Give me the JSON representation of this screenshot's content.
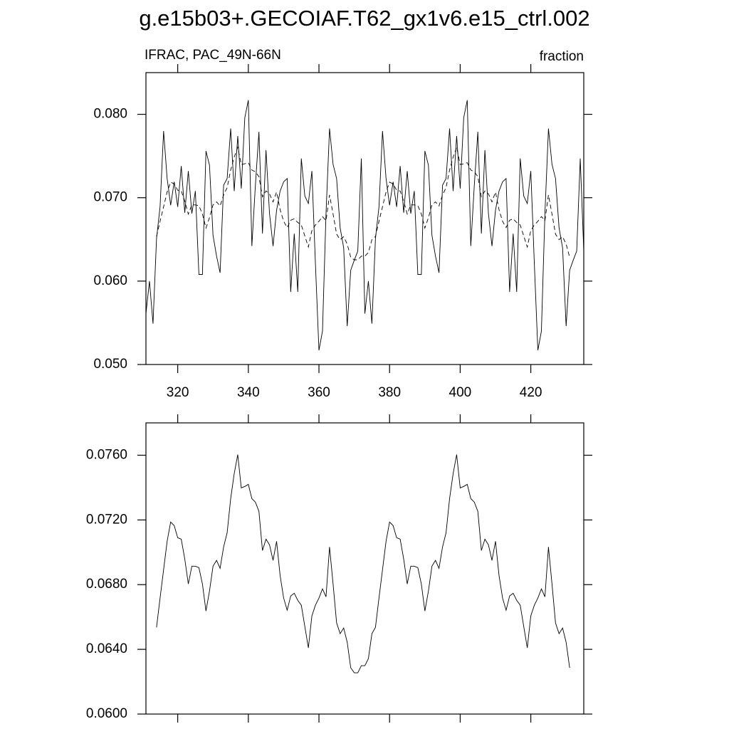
{
  "chart_data": [
    {
      "type": "line",
      "title": "g.e15b03+.GECOIAF.T62_gx1v6.e15_ctrl.002",
      "left_label": "IFRAC, PAC_49N-66N",
      "right_label": "fraction",
      "x": [
        311,
        312,
        313,
        314,
        315,
        316,
        317,
        318,
        319,
        320,
        321,
        322,
        323,
        324,
        325,
        326,
        327,
        328,
        329,
        330,
        331,
        332,
        333,
        334,
        335,
        336,
        337,
        338,
        339,
        340,
        341,
        342,
        343,
        344,
        345,
        346,
        347,
        348,
        349,
        350,
        351,
        352,
        353,
        354,
        355,
        356,
        357,
        358,
        359,
        360,
        361,
        362,
        363,
        364,
        365,
        366,
        367,
        368,
        369,
        370,
        371,
        372,
        373,
        374,
        375,
        376,
        377,
        378,
        379,
        380,
        381,
        382,
        383,
        384,
        385,
        386,
        387,
        388,
        389,
        390,
        391,
        392,
        393,
        394,
        395,
        396,
        397,
        398,
        399,
        400,
        401,
        402,
        403,
        404,
        405,
        406,
        407,
        408,
        409,
        410,
        411,
        412,
        413,
        414,
        415,
        416,
        417,
        418,
        419,
        420,
        421,
        422,
        423,
        424,
        425,
        426,
        427,
        428,
        429,
        430,
        431,
        432,
        433,
        434,
        435
      ],
      "series": [
        {
          "color": "#000000",
          "line_style": "solid",
          "values": [
            0.0561,
            0.06,
            0.0549,
            0.0651,
            0.0689,
            0.078,
            0.0723,
            0.0691,
            0.0719,
            0.0689,
            0.0738,
            0.0682,
            0.0732,
            0.0681,
            0.0708,
            0.0608,
            0.0608,
            0.0756,
            0.0739,
            0.0655,
            0.063,
            0.061,
            0.0715,
            0.0723,
            0.0783,
            0.0708,
            0.0774,
            0.0711,
            0.0796,
            0.0817,
            0.0642,
            0.0715,
            0.0779,
            0.0657,
            0.0757,
            0.0681,
            0.0642,
            0.0685,
            0.0708,
            0.0719,
            0.0723,
            0.0587,
            0.0657,
            0.0587,
            0.0747,
            0.0702,
            0.0693,
            0.0732,
            0.0621,
            0.0517,
            0.054,
            0.0681,
            0.0783,
            0.074,
            0.0723,
            0.0664,
            0.064,
            0.0546,
            0.0613,
            0.0625,
            0.0636,
            0.0747,
            0.0561,
            0.06,
            0.0549,
            0.0651,
            0.0689,
            0.078,
            0.0723,
            0.0691,
            0.0719,
            0.0689,
            0.0738,
            0.0682,
            0.0732,
            0.0681,
            0.0708,
            0.0608,
            0.0608,
            0.0756,
            0.0739,
            0.0655,
            0.063,
            0.061,
            0.0715,
            0.0723,
            0.0783,
            0.0708,
            0.0774,
            0.0711,
            0.0796,
            0.0817,
            0.0642,
            0.0715,
            0.0779,
            0.0657,
            0.0757,
            0.0681,
            0.0642,
            0.0685,
            0.0708,
            0.0719,
            0.0723,
            0.0587,
            0.0657,
            0.0587,
            0.0747,
            0.0702,
            0.0693,
            0.0732,
            0.0621,
            0.0517,
            0.054,
            0.0681,
            0.0783,
            0.074,
            0.0723,
            0.0664,
            0.064,
            0.0546,
            0.0613,
            0.0625,
            0.0636,
            0.0747,
            0.0636
          ]
        },
        {
          "color": "#000000",
          "line_style": "dashed",
          "values": [
            null,
            null,
            null,
            0.06536,
            0.06717,
            0.06892,
            0.07068,
            0.07187,
            0.07165,
            0.0709,
            0.07081,
            0.06958,
            0.06804,
            0.06914,
            0.06914,
            0.06905,
            0.06804,
            0.06637,
            0.0676,
            0.06914,
            0.0695,
            0.06901,
            0.07033,
            0.07121,
            0.07332,
            0.07486,
            0.07604,
            0.07398,
            0.07407,
            0.0742,
            0.07332,
            0.0731,
            0.07253,
            0.07011,
            0.07081,
            0.07046,
            0.0695,
            0.07068,
            0.06857,
            0.06717,
            0.06642,
            0.0673,
            0.06747,
            0.06703,
            0.06673,
            0.06541,
            0.06409,
            0.06607,
            0.06673,
            0.06717,
            0.06774,
            0.06725,
            0.07033,
            0.06804,
            0.06563,
            0.06497,
            0.06532,
            0.06444,
            0.06286,
            0.06255,
            0.06255,
            0.06299,
            0.06299,
            0.06343,
            0.06497,
            0.06536,
            0.06717,
            0.06892,
            0.07068,
            0.07187,
            0.07165,
            0.0709,
            0.07081,
            0.06958,
            0.06804,
            0.06914,
            0.06914,
            0.06905,
            0.06804,
            0.06637,
            0.0676,
            0.06914,
            0.0695,
            0.06901,
            0.07033,
            0.07121,
            0.07332,
            0.07486,
            0.07604,
            0.07398,
            0.07407,
            0.0742,
            0.07332,
            0.0731,
            0.07253,
            0.07011,
            0.07081,
            0.07046,
            0.0695,
            0.07068,
            0.06857,
            0.06717,
            0.06642,
            0.0673,
            0.06747,
            0.06703,
            0.06673,
            0.06541,
            0.06409,
            0.06607,
            0.06673,
            0.06717,
            0.06774,
            0.06725,
            0.07033,
            0.06804,
            0.06563,
            0.06497,
            0.06532,
            0.06444,
            0.06286,
            null,
            null,
            null,
            null
          ]
        }
      ],
      "xlim": [
        311,
        435
      ],
      "ylim": [
        0.05,
        0.085
      ],
      "xticks": [
        320,
        340,
        360,
        380,
        400,
        420
      ],
      "yticks": [
        {
          "value": 0.05,
          "label": "0.050"
        },
        {
          "value": 0.06,
          "label": "0.060"
        },
        {
          "value": 0.07,
          "label": "0.070"
        },
        {
          "value": 0.08,
          "label": "0.080"
        }
      ]
    },
    {
      "type": "line",
      "x": [
        314,
        315,
        316,
        317,
        318,
        319,
        320,
        321,
        322,
        323,
        324,
        325,
        326,
        327,
        328,
        329,
        330,
        331,
        332,
        333,
        334,
        335,
        336,
        337,
        338,
        339,
        340,
        341,
        342,
        343,
        344,
        345,
        346,
        347,
        348,
        349,
        350,
        351,
        352,
        353,
        354,
        355,
        356,
        357,
        358,
        359,
        360,
        361,
        362,
        363,
        364,
        365,
        366,
        367,
        368,
        369,
        370,
        371,
        372,
        373,
        374,
        375,
        376,
        377,
        378,
        379,
        380,
        381,
        382,
        383,
        384,
        385,
        386,
        387,
        388,
        389,
        390,
        391,
        392,
        393,
        394,
        395,
        396,
        397,
        398,
        399,
        400,
        401,
        402,
        403,
        404,
        405,
        406,
        407,
        408,
        409,
        410,
        411,
        412,
        413,
        414,
        415,
        416,
        417,
        418,
        419,
        420,
        421,
        422,
        423,
        424,
        425,
        426,
        427,
        428,
        429,
        430,
        431
      ],
      "series": [
        {
          "color": "#000000",
          "line_style": "solid",
          "values": [
            0.06536,
            0.06717,
            0.06892,
            0.07068,
            0.07187,
            0.07165,
            0.0709,
            0.07081,
            0.06958,
            0.06804,
            0.06914,
            0.06914,
            0.06905,
            0.06804,
            0.06637,
            0.0676,
            0.06914,
            0.0695,
            0.06901,
            0.07033,
            0.07121,
            0.07332,
            0.07486,
            0.07604,
            0.07398,
            0.07407,
            0.0742,
            0.07332,
            0.0731,
            0.07253,
            0.07011,
            0.07081,
            0.07046,
            0.0695,
            0.07068,
            0.06857,
            0.06717,
            0.06642,
            0.0673,
            0.06747,
            0.06703,
            0.06673,
            0.06541,
            0.06409,
            0.06607,
            0.06673,
            0.06717,
            0.06774,
            0.06725,
            0.07033,
            0.06804,
            0.06563,
            0.06497,
            0.06532,
            0.06444,
            0.06286,
            0.06255,
            0.06255,
            0.06299,
            0.06299,
            0.06343,
            0.06497,
            0.06536,
            0.06717,
            0.06892,
            0.07068,
            0.07187,
            0.07165,
            0.0709,
            0.07081,
            0.06958,
            0.06804,
            0.06914,
            0.06914,
            0.06905,
            0.06804,
            0.06637,
            0.0676,
            0.06914,
            0.0695,
            0.06901,
            0.07033,
            0.07121,
            0.07332,
            0.07486,
            0.07604,
            0.07398,
            0.07407,
            0.0742,
            0.07332,
            0.0731,
            0.07253,
            0.07011,
            0.07081,
            0.07046,
            0.0695,
            0.07068,
            0.06857,
            0.06717,
            0.06642,
            0.0673,
            0.06747,
            0.06703,
            0.06673,
            0.06541,
            0.06409,
            0.06607,
            0.06673,
            0.06717,
            0.06774,
            0.06725,
            0.07033,
            0.06804,
            0.06563,
            0.06497,
            0.06532,
            0.06444,
            0.06286
          ]
        }
      ],
      "xlim": [
        311,
        435
      ],
      "ylim": [
        0.06,
        0.078
      ],
      "xticks": [
        320,
        340,
        360,
        380,
        400,
        420
      ],
      "yticks": [
        {
          "value": 0.06,
          "label": "0.0600"
        },
        {
          "value": 0.064,
          "label": "0.0640"
        },
        {
          "value": 0.068,
          "label": "0.0680"
        },
        {
          "value": 0.072,
          "label": "0.0720"
        },
        {
          "value": 0.076,
          "label": "0.0760"
        }
      ]
    }
  ]
}
